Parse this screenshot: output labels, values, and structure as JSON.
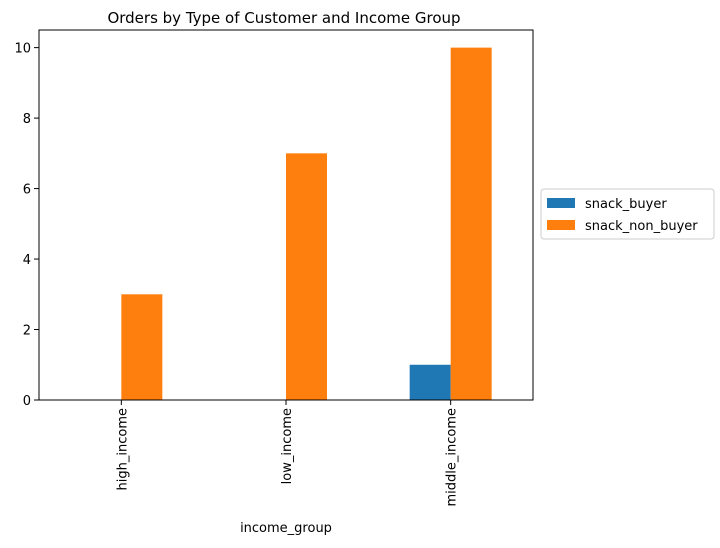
{
  "chart_data": {
    "type": "bar",
    "title": "Orders by Type of Customer and Income Group",
    "xlabel": "income_group",
    "ylabel": "",
    "categories": [
      "high_income",
      "low_income",
      "middle_income"
    ],
    "series": [
      {
        "name": "snack_buyer",
        "values": [
          0,
          0,
          1
        ],
        "color": "#1f77b4"
      },
      {
        "name": "snack_non_buyer",
        "values": [
          3,
          7,
          10
        ],
        "color": "#ff7f0e"
      }
    ],
    "ylim": [
      0,
      10.5
    ],
    "yticks": [
      0,
      2,
      4,
      6,
      8,
      10
    ],
    "grid": false,
    "legend_position": "right, outside plot"
  }
}
